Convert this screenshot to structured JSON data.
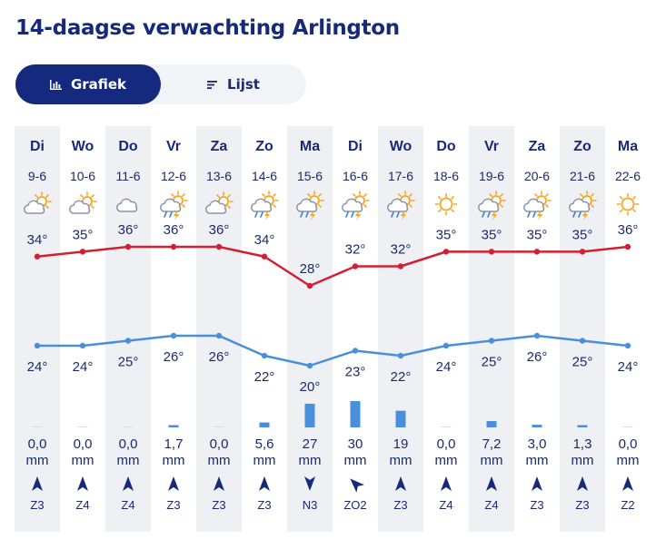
{
  "page_title": "14-daagse verwachting Arlington",
  "tabs": [
    {
      "label": "Grafiek",
      "icon": "bar-chart-icon",
      "active": true
    },
    {
      "label": "Lijst",
      "icon": "list-icon",
      "active": false
    }
  ],
  "colors": {
    "high_line": "#d41f32",
    "low_line": "#4a8fdc",
    "precip_bar": "#4a8fdc",
    "column_shade": "#eef0f3",
    "accent": "#15297f"
  },
  "chart_data": {
    "type": "line",
    "days": [
      "Di",
      "Wo",
      "Do",
      "Vr",
      "Za",
      "Zo",
      "Ma",
      "Di",
      "Wo",
      "Do",
      "Vr",
      "Za",
      "Zo",
      "Ma"
    ],
    "dates": [
      "9-6",
      "10-6",
      "11-6",
      "12-6",
      "13-6",
      "14-6",
      "15-6",
      "16-6",
      "17-6",
      "18-6",
      "19-6",
      "20-6",
      "21-6",
      "22-6"
    ],
    "weather_icons": [
      "partly-cloudy-icon",
      "partly-cloudy-icon",
      "cloud-icon",
      "thunderstorm-sun-icon",
      "partly-cloudy-icon",
      "thunderstorm-sun-icon",
      "thunderstorm-sun-icon",
      "thunderstorm-sun-icon",
      "thunderstorm-sun-icon",
      "sun-icon",
      "thunderstorm-sun-icon",
      "thunderstorm-sun-icon",
      "thunderstorm-sun-icon",
      "sun-icon"
    ],
    "series": [
      {
        "name": "max",
        "values": [
          34,
          35,
          36,
          36,
          36,
          34,
          28,
          32,
          32,
          35,
          35,
          35,
          35,
          36
        ]
      },
      {
        "name": "min",
        "values": [
          24,
          24,
          25,
          26,
          26,
          22,
          20,
          23,
          22,
          24,
          25,
          26,
          25,
          24
        ]
      }
    ],
    "temp_labels_high": [
      "34°",
      "35°",
      "36°",
      "36°",
      "36°",
      "34°",
      "28°",
      "32°",
      "32°",
      "35°",
      "35°",
      "35°",
      "35°",
      "36°"
    ],
    "temp_labels_low": [
      "24°",
      "24°",
      "25°",
      "26°",
      "26°",
      "22°",
      "20°",
      "23°",
      "22°",
      "24°",
      "25°",
      "26°",
      "25°",
      "24°"
    ],
    "precipitation": [
      0.0,
      0.0,
      0.0,
      1.7,
      0.0,
      5.6,
      27,
      30,
      19,
      0.0,
      7.2,
      3.0,
      1.3,
      0.0
    ],
    "precipitation_labels": [
      "0,0",
      "0,0",
      "0,0",
      "1,7",
      "0,0",
      "5,6",
      "27",
      "30",
      "19",
      "0,0",
      "7,2",
      "3,0",
      "1,3",
      "0,0"
    ],
    "precipitation_unit": "mm",
    "wind_direction_deg": [
      0,
      0,
      0,
      0,
      0,
      0,
      180,
      315,
      0,
      0,
      0,
      0,
      0,
      0
    ],
    "wind_labels": [
      "Z3",
      "Z4",
      "Z4",
      "Z3",
      "Z3",
      "Z3",
      "N3",
      "ZO2",
      "Z3",
      "Z4",
      "Z4",
      "Z3",
      "Z3",
      "Z2"
    ]
  }
}
